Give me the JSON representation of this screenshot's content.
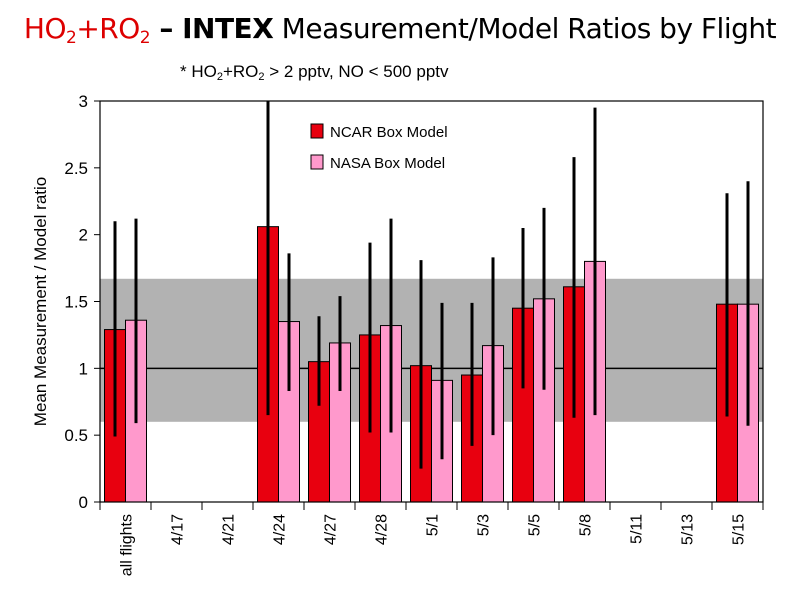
{
  "title": {
    "red_part": "HO",
    "red_sub1": "2",
    "red_plus": "+RO",
    "red_sub2": "2",
    "dash": " – ",
    "bold_part": "INTEX",
    "rest": " Measurement/Model Ratios by Flight"
  },
  "subtitle": {
    "part1": "* HO",
    "sub1": "2",
    "part2": "+RO",
    "sub2": "2",
    "part3": " > 2 pptv, NO < 500 pptv"
  },
  "colors": {
    "ncar": "#e8000f",
    "nasa": "#ff99cc",
    "band": "#b2b2b2",
    "line": "#000000"
  },
  "chart_data": {
    "type": "bar",
    "ylabel": "Mean Measurement / Model ratio",
    "ylim": [
      0,
      3
    ],
    "yticks": [
      "0",
      "0.5",
      "1",
      "1.5",
      "2",
      "2.5",
      "3"
    ],
    "band": [
      0.6,
      1.67
    ],
    "reference_line": 1,
    "categories": [
      "all flights",
      "4/17",
      "4/21",
      "4/24",
      "4/27",
      "4/28",
      "5/1",
      "5/3",
      "5/5",
      "5/8",
      "5/11",
      "5/13",
      "5/15"
    ],
    "legend": [
      "NCAR Box Model",
      "NASA Box Model"
    ],
    "series": [
      {
        "name": "NCAR Box Model",
        "values": [
          1.29,
          null,
          null,
          2.06,
          1.05,
          1.25,
          1.02,
          0.95,
          1.45,
          1.61,
          null,
          null,
          1.48
        ],
        "err_low": [
          0.49,
          null,
          null,
          0.65,
          0.72,
          0.52,
          0.25,
          0.42,
          0.85,
          0.63,
          null,
          null,
          0.64
        ],
        "err_high": [
          2.1,
          null,
          null,
          3.0,
          1.39,
          1.94,
          1.81,
          1.49,
          2.05,
          2.58,
          null,
          null,
          2.31
        ]
      },
      {
        "name": "NASA Box Model",
        "values": [
          1.36,
          null,
          null,
          1.35,
          1.19,
          1.32,
          0.91,
          1.17,
          1.52,
          1.8,
          null,
          null,
          1.48
        ],
        "err_low": [
          0.59,
          null,
          null,
          0.83,
          0.83,
          0.52,
          0.32,
          0.5,
          0.84,
          0.65,
          null,
          null,
          0.57
        ],
        "err_high": [
          2.12,
          null,
          null,
          1.86,
          1.54,
          2.12,
          1.49,
          1.83,
          2.2,
          2.95,
          null,
          null,
          2.4
        ]
      }
    ]
  }
}
